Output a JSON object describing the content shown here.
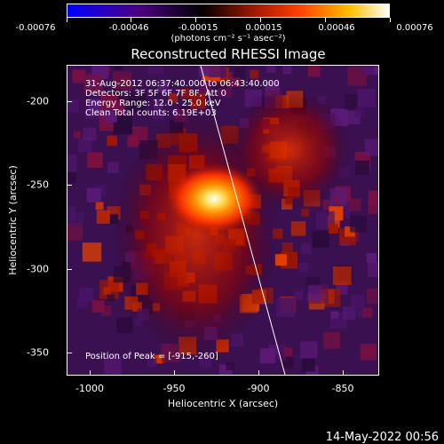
{
  "colorbar": {
    "tick_labels": [
      "-0.00076",
      "-0.00046",
      "-0.00015",
      "0.00015",
      "0.00046",
      "0.00076"
    ],
    "units": "(photons cm⁻² s⁻¹ asec⁻²)",
    "colors": [
      "#0000ff",
      "#4b0082",
      "#000000",
      "#a01800",
      "#ff4000",
      "#ffc000",
      "#ffffff"
    ]
  },
  "plot": {
    "title": "Reconstructed RHESSI Image",
    "info_lines": [
      "31-Aug-2012 06:37:40.000 to 06:43:40.000",
      "Detectors: 3F 5F 6F 7F 8F, Att 0",
      "Energy Range: 12.0 - 25.0 keV",
      "Clean     Total counts: 6.19E+03"
    ],
    "peak_text": "Position of Peak = [-915,-260]",
    "x_axis": {
      "title": "Heliocentric X (arcsec)",
      "ticks": [
        "-1000",
        "-950",
        "-900",
        "-850"
      ],
      "values": [
        -1000,
        -950,
        -900,
        -850
      ],
      "range": [
        -1005,
        -820
      ]
    },
    "y_axis": {
      "title": "Heliocentric Y (arcsec)",
      "ticks": [
        "-200",
        "-250",
        "-300",
        "-350"
      ],
      "values": [
        -200,
        -250,
        -300,
        -350
      ],
      "range": [
        -370,
        -185
      ]
    },
    "peak": {
      "x": -915,
      "y": -260
    }
  },
  "footer": {
    "date": "14-May-2022 00:56"
  }
}
